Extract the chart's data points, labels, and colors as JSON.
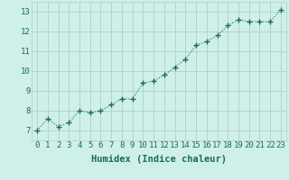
{
  "x": [
    0,
    1,
    2,
    3,
    4,
    5,
    6,
    7,
    8,
    9,
    10,
    11,
    12,
    13,
    14,
    15,
    16,
    17,
    18,
    19,
    20,
    21,
    22,
    23
  ],
  "y": [
    7.0,
    7.6,
    7.2,
    7.4,
    8.0,
    7.9,
    8.0,
    8.3,
    8.6,
    8.6,
    9.4,
    9.5,
    9.8,
    10.2,
    10.6,
    11.3,
    11.5,
    11.8,
    12.3,
    12.6,
    12.5,
    12.5,
    12.5,
    13.1
  ],
  "line_color": "#1a6b5a",
  "marker": "+",
  "marker_size": 4,
  "bg_color": "#cef0e8",
  "grid_color": "#b0cfc8",
  "xlabel": "Humidex (Indice chaleur)",
  "xlim": [
    -0.5,
    23.5
  ],
  "ylim": [
    6.5,
    13.5
  ],
  "yticks": [
    7,
    8,
    9,
    10,
    11,
    12,
    13
  ],
  "xticks": [
    0,
    1,
    2,
    3,
    4,
    5,
    6,
    7,
    8,
    9,
    10,
    11,
    12,
    13,
    14,
    15,
    16,
    17,
    18,
    19,
    20,
    21,
    22,
    23
  ],
  "axis_color": "#1a6b5a",
  "font_size": 6.5,
  "xlabel_fontsize": 7.5,
  "line_width": 0.8
}
